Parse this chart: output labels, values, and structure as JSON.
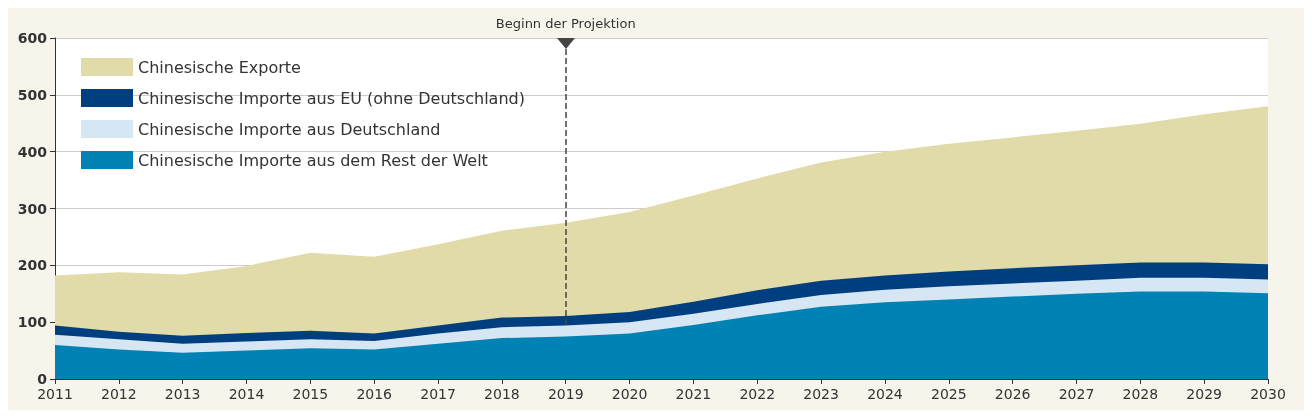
{
  "chart_data": {
    "type": "area",
    "stacked": true,
    "x": [
      2011,
      2012,
      2013,
      2014,
      2015,
      2016,
      2017,
      2018,
      2019,
      2020,
      2021,
      2022,
      2023,
      2024,
      2025,
      2026,
      2027,
      2028,
      2029,
      2030
    ],
    "series": [
      {
        "name": "Chinesische Importe aus dem Rest der Welt",
        "color": "#0082b4",
        "values": [
          60,
          52,
          46,
          50,
          54,
          52,
          62,
          72,
          75,
          80,
          95,
          112,
          127,
          135,
          140,
          145,
          150,
          154,
          154,
          151
        ]
      },
      {
        "name": "Chinesische Importe aus Deutschland",
        "color": "#d6e6f3",
        "values": [
          18,
          18,
          16,
          16,
          16,
          15,
          18,
          19,
          19,
          20,
          20,
          20,
          21,
          22,
          23,
          23,
          23,
          24,
          24,
          24
        ]
      },
      {
        "name": "Chinesische Importe aus EU (ohne Deutschland)",
        "color": "#003f7f",
        "values": [
          16,
          13,
          14,
          15,
          15,
          13,
          14,
          17,
          17,
          18,
          21,
          24,
          25,
          25,
          26,
          27,
          27,
          27,
          27,
          27
        ]
      },
      {
        "name": "Chinesische Exporte",
        "color": "#e0dba9",
        "values": [
          88,
          105,
          108,
          118,
          137,
          135,
          143,
          153,
          164,
          176,
          187,
          197,
          208,
          218,
          225,
          230,
          237,
          244,
          261,
          278
        ]
      }
    ],
    "xlim": [
      2011,
      2030
    ],
    "xticks": [
      2011,
      2012,
      2013,
      2014,
      2015,
      2016,
      2017,
      2018,
      2019,
      2020,
      2021,
      2022,
      2023,
      2024,
      2025,
      2026,
      2027,
      2028,
      2029,
      2030
    ],
    "ylim": [
      0,
      600
    ],
    "yticks": [
      0,
      100,
      200,
      300,
      400,
      500,
      600
    ],
    "grid": "y",
    "legend": "top left",
    "ref_lines": [
      {
        "axis": "x",
        "value": 2019,
        "label": "Beginn der Projektion",
        "line_style": "dashed",
        "color": "#444444"
      }
    ]
  }
}
